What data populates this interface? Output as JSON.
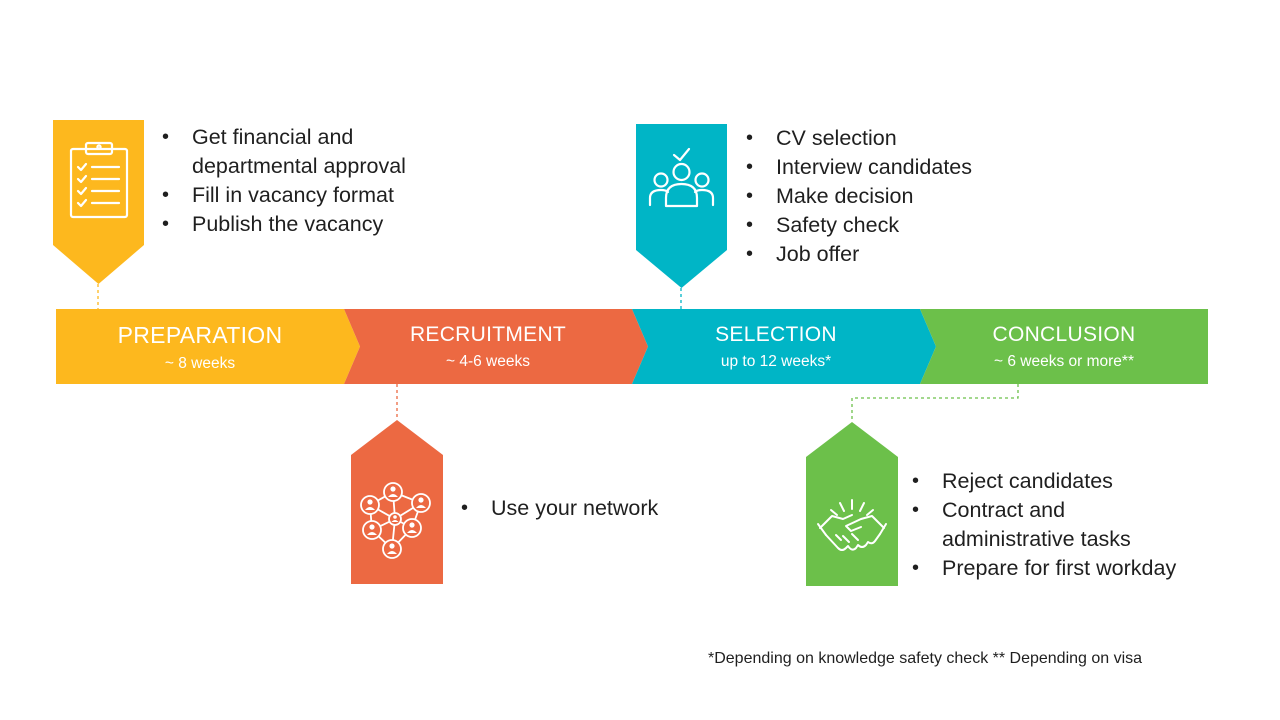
{
  "stages": [
    {
      "name": "PREPARATION",
      "duration": "~ 8 weeks",
      "color": "#FDB81E"
    },
    {
      "name": "RECRUITMENT",
      "duration": "~ 4-6 weeks",
      "color": "#EC6942"
    },
    {
      "name": "SELECTION",
      "duration": "up to 12 weeks*",
      "color": "#00B5C6"
    },
    {
      "name": "CONCLUSION",
      "duration": "~ 6 weeks or more**",
      "color": "#6CC04A"
    }
  ],
  "callouts": {
    "preparation": {
      "icon": "clipboard-checklist-icon",
      "items": [
        "Get financial and departmental approval",
        "Fill in vacancy format",
        "Publish the vacancy"
      ]
    },
    "recruitment": {
      "icon": "people-network-icon",
      "items": [
        "Use your network"
      ]
    },
    "selection": {
      "icon": "team-check-icon",
      "items": [
        "CV selection",
        "Interview candidates",
        "Make decision",
        "Safety check",
        "Job offer"
      ]
    },
    "conclusion": {
      "icon": "handshake-icon",
      "items": [
        "Reject candidates",
        "Contract and administrative tasks",
        "Prepare for first workday"
      ]
    }
  },
  "footnote": "*Depending on knowledge safety check ** Depending on visa"
}
